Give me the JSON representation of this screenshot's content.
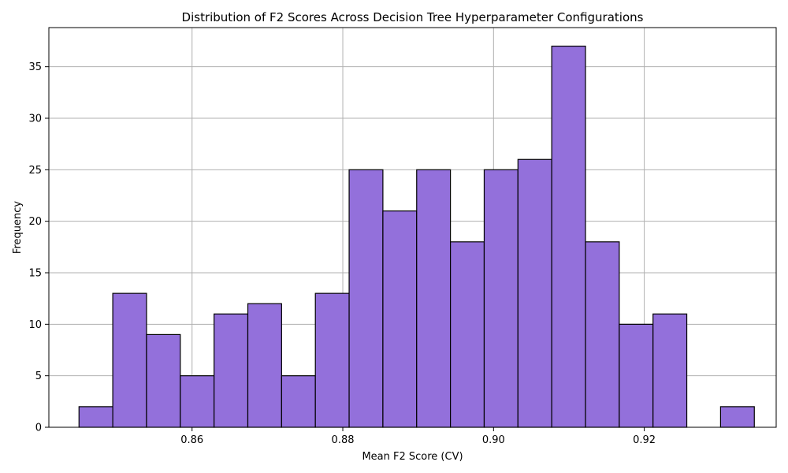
{
  "chart_data": {
    "type": "bar",
    "title": "Distribution of F2 Scores Across Decision Tree Hyperparameter Configurations",
    "xlabel": "Mean F2 Score (CV)",
    "ylabel": "Frequency",
    "bins": {
      "start": 0.845,
      "width": 0.00448,
      "counts": [
        2,
        13,
        9,
        5,
        11,
        12,
        5,
        13,
        25,
        21,
        25,
        18,
        25,
        26,
        37,
        18,
        10,
        11,
        0,
        2
      ]
    },
    "xlim": [
      0.841,
      0.9375
    ],
    "ylim": [
      0,
      38.8
    ],
    "xticks": [
      0.86,
      0.88,
      0.9,
      0.92
    ],
    "xtick_labels": [
      "0.86",
      "0.88",
      "0.90",
      "0.92"
    ],
    "yticks": [
      0,
      5,
      10,
      15,
      20,
      25,
      30,
      35
    ],
    "ytick_labels": [
      "0",
      "5",
      "10",
      "15",
      "20",
      "25",
      "30",
      "35"
    ],
    "grid": true,
    "colors": {
      "bar_fill": "#9370DB",
      "bar_edge": "#000000",
      "grid": "#b0b0b0"
    }
  }
}
